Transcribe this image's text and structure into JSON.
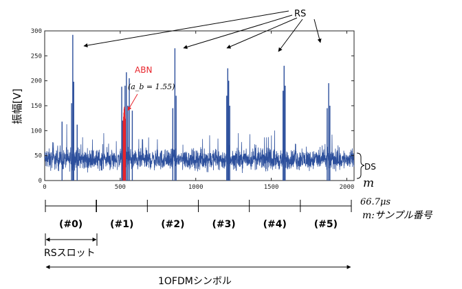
{
  "chart_data": {
    "type": "line",
    "ylabel": "振幅[V]",
    "xlim": [
      0,
      2048
    ],
    "ylim": [
      0,
      300
    ],
    "x_ticks": [
      "0",
      "500",
      "1000",
      "1500",
      "2000"
    ],
    "y_ticks": [
      "0",
      "50",
      "100",
      "150",
      "200",
      "250",
      "300"
    ],
    "grid": false,
    "series_color": "#2c4f9c",
    "abnormal_color": "#e8242b",
    "baseline": {
      "mean": 42,
      "spread": 30
    },
    "peaks": [
      {
        "x": 115,
        "y": 118
      },
      {
        "x": 178,
        "y": 155
      },
      {
        "x": 186,
        "y": 292
      },
      {
        "x": 192,
        "y": 198
      },
      {
        "x": 215,
        "y": 112
      },
      {
        "x": 510,
        "y": 188
      },
      {
        "x": 516,
        "y": 120
      },
      {
        "x": 532,
        "y": 190
      },
      {
        "x": 541,
        "y": 217
      },
      {
        "x": 550,
        "y": 150
      },
      {
        "x": 560,
        "y": 205
      },
      {
        "x": 580,
        "y": 140
      },
      {
        "x": 848,
        "y": 145
      },
      {
        "x": 862,
        "y": 265
      },
      {
        "x": 870,
        "y": 170
      },
      {
        "x": 1205,
        "y": 170
      },
      {
        "x": 1212,
        "y": 225
      },
      {
        "x": 1218,
        "y": 200
      },
      {
        "x": 1225,
        "y": 150
      },
      {
        "x": 1578,
        "y": 180
      },
      {
        "x": 1585,
        "y": 230
      },
      {
        "x": 1592,
        "y": 190
      },
      {
        "x": 1870,
        "y": 145
      },
      {
        "x": 1880,
        "y": 195
      },
      {
        "x": 1888,
        "y": 150
      }
    ],
    "abn_band": [
      520,
      535
    ],
    "abn_peak": 150,
    "annotations": {
      "rs": "RS",
      "abn": "ABN",
      "abn_formula": "(a_b = 1.55)",
      "ds": "DS",
      "m": "m",
      "duration": "66.7μs",
      "x_caption": "m:サンプル番号",
      "slot_caption": "RSスロット",
      "symbol_caption": "1OFDMシンボル"
    },
    "slots": [
      "(#0)",
      "(#1)",
      "(#2)",
      "(#3)",
      "(#4)",
      "(#5)"
    ]
  }
}
